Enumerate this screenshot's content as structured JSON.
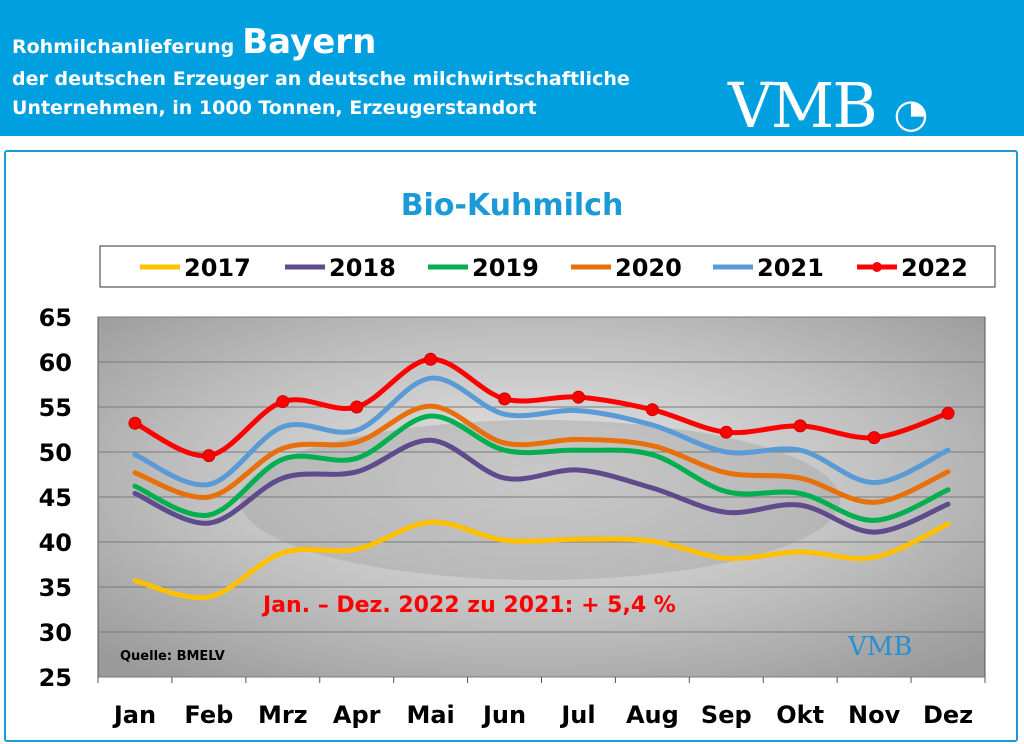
{
  "header": {
    "line1": "Rohmilchanlieferung",
    "region": "Bayern",
    "line2": "der deutschen Erzeuger an deutsche milchwirtschaftliche",
    "line3": "Unternehmen, in 1000 Tonnen, Erzeugerstandort",
    "logo": "VMB"
  },
  "chart_data": {
    "type": "line",
    "title": "Bio-Kuhmilch",
    "categories": [
      "Jan",
      "Feb",
      "Mrz",
      "Apr",
      "Mai",
      "Jun",
      "Jul",
      "Aug",
      "Sep",
      "Okt",
      "Nov",
      "Dez"
    ],
    "ylim": [
      25,
      65
    ],
    "yticks": [
      25,
      30,
      35,
      40,
      45,
      50,
      55,
      60,
      65
    ],
    "grid": true,
    "legend": "top",
    "series": [
      {
        "name": "2017",
        "color": "#ffc000",
        "values": [
          35.7,
          33.9,
          38.8,
          39.2,
          42.2,
          40.2,
          40.3,
          40.1,
          38.2,
          38.9,
          38.3,
          42.0
        ]
      },
      {
        "name": "2018",
        "color": "#5f4b8b",
        "values": [
          45.4,
          42.1,
          47.1,
          47.8,
          51.3,
          47.1,
          48.0,
          46.0,
          43.3,
          44.1,
          41.1,
          44.2
        ]
      },
      {
        "name": "2019",
        "color": "#00b050",
        "values": [
          46.2,
          43.0,
          49.2,
          49.3,
          54.0,
          50.2,
          50.2,
          49.7,
          45.6,
          45.4,
          42.4,
          45.8
        ]
      },
      {
        "name": "2020",
        "color": "#e8700c",
        "values": [
          47.7,
          45.0,
          50.4,
          51.1,
          55.1,
          51.0,
          51.4,
          50.7,
          47.7,
          47.1,
          44.4,
          47.8
        ]
      },
      {
        "name": "2021",
        "color": "#5b9bd5",
        "values": [
          49.7,
          46.4,
          52.8,
          52.4,
          58.2,
          54.2,
          54.6,
          53.0,
          50.0,
          50.2,
          46.6,
          50.2
        ]
      },
      {
        "name": "2022",
        "color": "#ff0000",
        "markers": true,
        "values": [
          53.2,
          49.6,
          55.6,
          55.0,
          60.3,
          55.9,
          56.1,
          54.7,
          52.2,
          52.9,
          51.6,
          54.3
        ]
      }
    ],
    "annotation": "Jan. – Dez. 2022 zu 2021: + 5,4 %",
    "source": "Quelle: BMELV",
    "watermark_logo": "VMB"
  }
}
